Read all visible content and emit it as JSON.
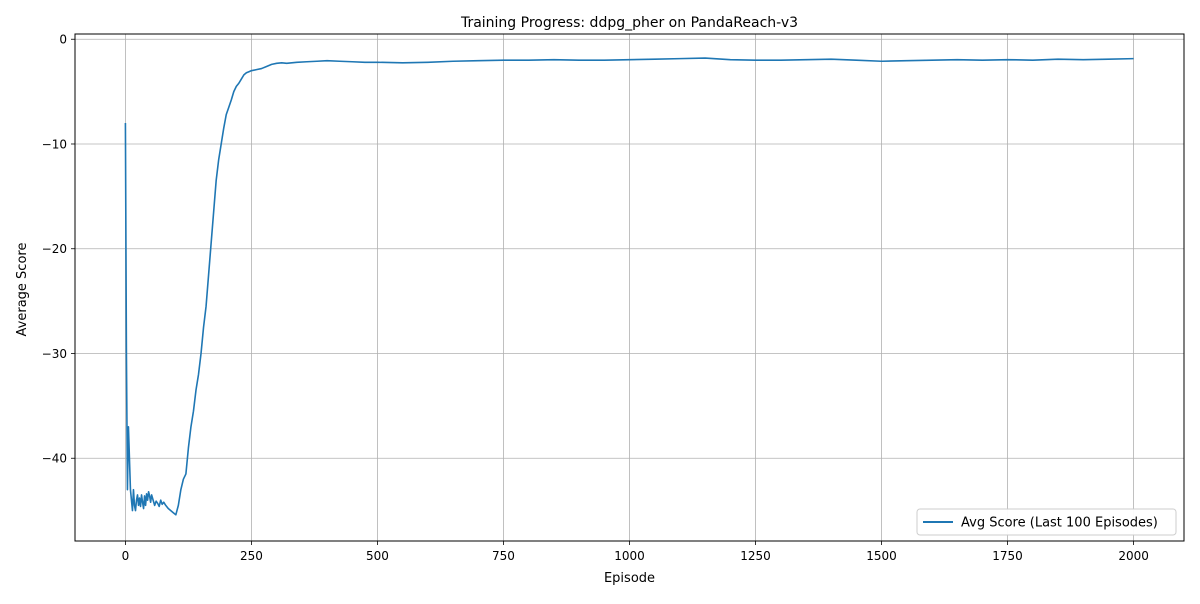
{
  "chart_data": {
    "type": "line",
    "title": "Training Progress: ddpg_pher on PandaReach-v3",
    "xlabel": "Episode",
    "ylabel": "Average Score",
    "xlim": [
      -100,
      2100
    ],
    "ylim": [
      -47.9,
      0.5
    ],
    "xticks": [
      0,
      250,
      500,
      750,
      1000,
      1250,
      1500,
      1750,
      2000
    ],
    "yticks": [
      0,
      -10,
      -20,
      -30,
      -40
    ],
    "xtick_labels": [
      "0",
      "250",
      "500",
      "750",
      "1000",
      "1250",
      "1500",
      "1750",
      "2000"
    ],
    "ytick_labels": [
      "0",
      "−10",
      "−20",
      "−30",
      "−40"
    ],
    "grid": true,
    "legend_position": "lower-right",
    "series": [
      {
        "name": "Avg Score (Last 100 Episodes)",
        "color": "#1f77b4",
        "x": [
          0,
          2,
          4,
          6,
          8,
          10,
          12,
          14,
          16,
          18,
          20,
          22,
          24,
          26,
          28,
          30,
          32,
          34,
          36,
          38,
          40,
          42,
          44,
          46,
          48,
          50,
          52,
          55,
          58,
          61,
          64,
          67,
          70,
          73,
          76,
          80,
          85,
          90,
          95,
          100,
          105,
          110,
          115,
          120,
          125,
          130,
          135,
          140,
          145,
          150,
          155,
          160,
          165,
          170,
          175,
          180,
          185,
          190,
          195,
          200,
          205,
          210,
          215,
          220,
          225,
          230,
          235,
          240,
          245,
          250,
          260,
          270,
          280,
          290,
          300,
          310,
          320,
          340,
          360,
          380,
          400,
          425,
          450,
          475,
          500,
          550,
          600,
          650,
          700,
          750,
          800,
          850,
          900,
          950,
          1000,
          1050,
          1100,
          1150,
          1200,
          1250,
          1300,
          1350,
          1400,
          1450,
          1500,
          1550,
          1600,
          1650,
          1700,
          1750,
          1800,
          1850,
          1900,
          1950,
          2000
        ],
        "y": [
          -8,
          -30,
          -43,
          -37,
          -40,
          -43,
          -44,
          -45,
          -43,
          -44.5,
          -45,
          -44,
          -43.5,
          -44.5,
          -43.8,
          -44.6,
          -43.5,
          -44.2,
          -44.8,
          -43.6,
          -44.5,
          -43.4,
          -44.0,
          -43.2,
          -43.6,
          -44.2,
          -43.5,
          -44.0,
          -44.5,
          -44.1,
          -44.3,
          -44.6,
          -44.0,
          -44.4,
          -44.2,
          -44.5,
          -44.8,
          -45.0,
          -45.2,
          -45.4,
          -44.5,
          -43.0,
          -42.0,
          -41.5,
          -39.0,
          -37.0,
          -35.5,
          -33.5,
          -32.0,
          -30.0,
          -27.5,
          -25.5,
          -22.5,
          -19.5,
          -16.5,
          -13.5,
          -11.5,
          -10.0,
          -8.5,
          -7.2,
          -6.5,
          -5.8,
          -5.0,
          -4.5,
          -4.2,
          -3.8,
          -3.4,
          -3.2,
          -3.1,
          -3.0,
          -2.9,
          -2.8,
          -2.6,
          -2.4,
          -2.3,
          -2.25,
          -2.3,
          -2.2,
          -2.15,
          -2.1,
          -2.05,
          -2.1,
          -2.15,
          -2.2,
          -2.2,
          -2.25,
          -2.2,
          -2.1,
          -2.05,
          -2.0,
          -2.0,
          -1.95,
          -2.0,
          -2.0,
          -1.95,
          -1.9,
          -1.85,
          -1.8,
          -1.95,
          -2.0,
          -2.0,
          -1.95,
          -1.9,
          -2.0,
          -2.1,
          -2.05,
          -2.0,
          -1.95,
          -2.0,
          -1.95,
          -2.0,
          -1.9,
          -1.95,
          -1.9,
          -1.85
        ]
      }
    ]
  }
}
